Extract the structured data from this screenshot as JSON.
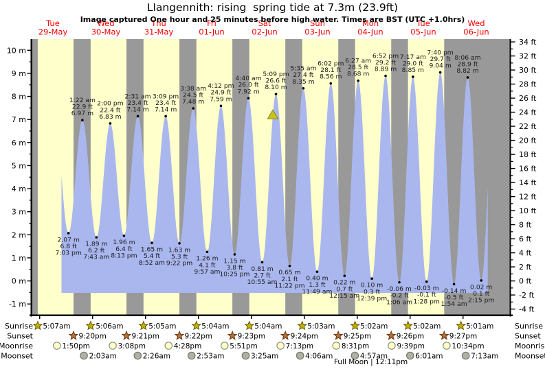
{
  "title": "Llangennith: rising  spring tide at 7.3m (23.9ft)",
  "subtitle": "Image captured One hour and 25 minutes before high water. Times are BST (UTC +1.0hrs)",
  "days": [
    {
      "dow": "Tue",
      "date": "29-May"
    },
    {
      "dow": "Wed",
      "date": "30-May"
    },
    {
      "dow": "Thu",
      "date": "31-May"
    },
    {
      "dow": "Fri",
      "date": "01-Jun"
    },
    {
      "dow": "Sat",
      "date": "02-Jun"
    },
    {
      "dow": "Sun",
      "date": "03-Jun"
    },
    {
      "dow": "Mon",
      "date": "04-Jun"
    },
    {
      "dow": "Tue",
      "date": "05-Jun"
    },
    {
      "dow": "Wed",
      "date": "06-Jun"
    }
  ],
  "axes": {
    "left": {
      "unit": "m",
      "values": [
        10,
        9,
        8,
        7,
        6,
        5,
        4,
        3,
        2,
        1,
        0,
        -1
      ],
      "labels": [
        "10 m",
        "9 m",
        "8 m",
        "7 m",
        "6 m",
        "5 m",
        "4 m",
        "3 m",
        "2 m",
        "1 m",
        "0 m",
        "-1 m"
      ]
    },
    "right": {
      "unit": "ft",
      "values": [
        34,
        32,
        30,
        28,
        26,
        24,
        22,
        20,
        18,
        16,
        14,
        12,
        10,
        8,
        6,
        4,
        2,
        0,
        -2,
        -4
      ],
      "labels": [
        "34 ft",
        "32 ft",
        "30 ft",
        "28 ft",
        "26 ft",
        "24 ft",
        "22 ft",
        "20 ft",
        "18 ft",
        "16 ft",
        "14 ft",
        "12 ft",
        "10 ft",
        "8 ft",
        "6 ft",
        "4 ft",
        "2 ft",
        "0 ft",
        "-2 ft",
        "-4 ft"
      ]
    }
  },
  "chart_data": {
    "type": "area",
    "x_unit": "hours since 29-May 00:00 BST",
    "y_unit": "metres",
    "ylim": [
      -1.05,
      10.5
    ],
    "tide_events": [
      {
        "type": "low",
        "t": 19.05,
        "height_m": 2.07,
        "height_ft": 6.8,
        "time": "7:03 pm"
      },
      {
        "type": "high",
        "t": 25.37,
        "height_m": 6.97,
        "height_ft": 22.9,
        "time": "1:22 am"
      },
      {
        "type": "low",
        "t": 31.72,
        "height_m": 1.89,
        "height_ft": 6.2,
        "time": "7:43 am"
      },
      {
        "type": "high",
        "t": 38.0,
        "height_m": 6.83,
        "height_ft": 22.4,
        "time": "2:00 pm"
      },
      {
        "type": "low",
        "t": 44.22,
        "height_m": 1.96,
        "height_ft": 6.4,
        "time": "8:13 pm"
      },
      {
        "type": "high",
        "t": 50.52,
        "height_m": 7.14,
        "height_ft": 23.4,
        "time": "2:31 am"
      },
      {
        "type": "low",
        "t": 56.87,
        "height_m": 1.65,
        "height_ft": 5.4,
        "time": "8:52 am"
      },
      {
        "type": "high",
        "t": 63.15,
        "height_m": 7.14,
        "height_ft": 23.4,
        "time": "3:09 pm"
      },
      {
        "type": "low",
        "t": 69.37,
        "height_m": 1.63,
        "height_ft": 5.3,
        "time": "9:22 pm"
      },
      {
        "type": "high",
        "t": 75.63,
        "height_m": 7.48,
        "height_ft": 24.5,
        "time": "3:38 am"
      },
      {
        "type": "low",
        "t": 81.95,
        "height_m": 1.26,
        "height_ft": 4.1,
        "time": "9:57 am"
      },
      {
        "type": "high",
        "t": 88.2,
        "height_m": 7.59,
        "height_ft": 24.9,
        "time": "4:12 pm"
      },
      {
        "type": "low",
        "t": 94.42,
        "height_m": 1.15,
        "height_ft": 3.8,
        "time": "10:25 pm"
      },
      {
        "type": "high",
        "t": 100.67,
        "height_m": 7.92,
        "height_ft": 26.0,
        "time": "4:40 am"
      },
      {
        "type": "low",
        "t": 106.92,
        "height_m": 0.81,
        "height_ft": 2.7,
        "time": "10:55 am"
      },
      {
        "type": "high",
        "t": 113.15,
        "height_m": 8.1,
        "height_ft": 26.6,
        "time": "5:09 pm"
      },
      {
        "type": "low",
        "t": 119.37,
        "height_m": 0.65,
        "height_ft": 2.1,
        "time": "11:22 pm"
      },
      {
        "type": "high",
        "t": 125.58,
        "height_m": 8.35,
        "height_ft": 27.4,
        "time": "5:35 am"
      },
      {
        "type": "low",
        "t": 131.82,
        "height_m": 0.4,
        "height_ft": 1.3,
        "time": "11:49 am"
      },
      {
        "type": "high",
        "t": 138.03,
        "height_m": 8.56,
        "height_ft": 28.1,
        "time": "6:02 pm"
      },
      {
        "type": "low",
        "t": 144.25,
        "height_m": 0.22,
        "height_ft": 0.7,
        "time": "12:15 am"
      },
      {
        "type": "high",
        "t": 150.45,
        "height_m": 8.68,
        "height_ft": 28.5,
        "time": "6:27 am"
      },
      {
        "type": "low",
        "t": 156.65,
        "height_m": 0.1,
        "height_ft": 0.3,
        "time": "12:39 pm"
      },
      {
        "type": "high",
        "t": 162.87,
        "height_m": 8.89,
        "height_ft": 29.2,
        "time": "6:52 pm"
      },
      {
        "type": "low",
        "t": 169.1,
        "height_m": -0.06,
        "height_ft": -0.2,
        "time": "1:06 am"
      },
      {
        "type": "high",
        "t": 175.28,
        "height_m": 8.85,
        "height_ft": 29.0,
        "time": "7:17 am"
      },
      {
        "type": "low",
        "t": 181.47,
        "height_m": -0.03,
        "height_ft": -0.1,
        "time": "1:28 pm"
      },
      {
        "type": "high",
        "t": 187.67,
        "height_m": 9.04,
        "height_ft": 29.7,
        "time": "7:40 pm"
      },
      {
        "type": "low",
        "t": 193.9,
        "height_m": -0.14,
        "height_ft": -0.5,
        "time": "1:54 am"
      },
      {
        "type": "high",
        "t": 200.1,
        "height_m": 8.82,
        "height_ft": 28.9,
        "time": "8:06 am"
      },
      {
        "type": "low",
        "t": 206.25,
        "height_m": 0.02,
        "height_ft": 0.1,
        "time": "2:15 pm"
      }
    ],
    "curve_window": {
      "t_start": 15.9,
      "t_end": 209.2
    },
    "capture_marker": {
      "t": 111.73
    }
  },
  "astro": {
    "rows": [
      {
        "id": "sunrise",
        "label": "Sunrise",
        "marker": "star-gold",
        "events": [
          {
            "t": 5.117,
            "time": "5:07am"
          },
          {
            "t": 29.1,
            "time": "5:06am"
          },
          {
            "t": 53.083,
            "time": "5:05am"
          },
          {
            "t": 77.067,
            "time": "5:04am"
          },
          {
            "t": 101.067,
            "time": "5:04am"
          },
          {
            "t": 125.05,
            "time": "5:03am"
          },
          {
            "t": 149.033,
            "time": "5:02am"
          },
          {
            "t": 173.033,
            "time": "5:02am"
          },
          {
            "t": 197.017,
            "time": "5:01am"
          }
        ]
      },
      {
        "id": "sunset",
        "label": "Sunset",
        "marker": "star-brown",
        "events": [
          {
            "t": 21.333,
            "time": "9:20pm"
          },
          {
            "t": 45.35,
            "time": "9:21pm"
          },
          {
            "t": 69.367,
            "time": "9:22pm"
          },
          {
            "t": 93.383,
            "time": "9:23pm"
          },
          {
            "t": 117.4,
            "time": "9:24pm"
          },
          {
            "t": 141.417,
            "time": "9:25pm"
          },
          {
            "t": 165.433,
            "time": "9:26pm"
          },
          {
            "t": 189.45,
            "time": "9:27pm"
          }
        ]
      },
      {
        "id": "moonrise",
        "label": "Moonrise",
        "marker": "circle-pale",
        "events": [
          {
            "t": 13.833,
            "time": "1:50pm"
          },
          {
            "t": 39.133,
            "time": "3:08pm"
          },
          {
            "t": 64.467,
            "time": "4:28pm"
          },
          {
            "t": 89.85,
            "time": "5:51pm"
          },
          {
            "t": 115.217,
            "time": "7:13pm"
          },
          {
            "t": 140.517,
            "time": "8:31pm"
          },
          {
            "t": 165.65,
            "time": "9:39pm"
          },
          {
            "t": 190.567,
            "time": "10:34pm"
          }
        ]
      },
      {
        "id": "moonset",
        "label": "Moonset",
        "marker": "circle-gray",
        "events": [
          {
            "t": 26.05,
            "time": "2:03am"
          },
          {
            "t": 50.433,
            "time": "2:26am"
          },
          {
            "t": 74.883,
            "time": "2:53am"
          },
          {
            "t": 99.417,
            "time": "3:25am"
          },
          {
            "t": 124.1,
            "time": "4:06am"
          },
          {
            "t": 148.95,
            "time": "4:57am"
          },
          {
            "t": 174.017,
            "time": "6:01am"
          },
          {
            "t": 199.217,
            "time": "7:13am"
          }
        ]
      }
    ],
    "full_moon": {
      "text": "Full Moon | 12:11pm",
      "t": 156.18
    }
  },
  "colors": {
    "day_band": "#ffffcc",
    "night_band": "#999999",
    "tide_fill": "#aab7ee",
    "date_label": "#f30000",
    "text": "#000000",
    "tide_label": "#1a1a1a",
    "sunrise_star": "#c4b000",
    "sunrise_star_edge": "#5f5600",
    "sunset_star": "#b4713a",
    "sunset_star_edge": "#6b3a16",
    "moonrise_fill": "#ffffcc",
    "moonrise_edge": "#8f8f77",
    "moonset_fill": "#b0b0a4",
    "moonset_edge": "#75756b",
    "capture_marker": "#c9c21f",
    "capture_marker_edge": "#8a8a00"
  }
}
